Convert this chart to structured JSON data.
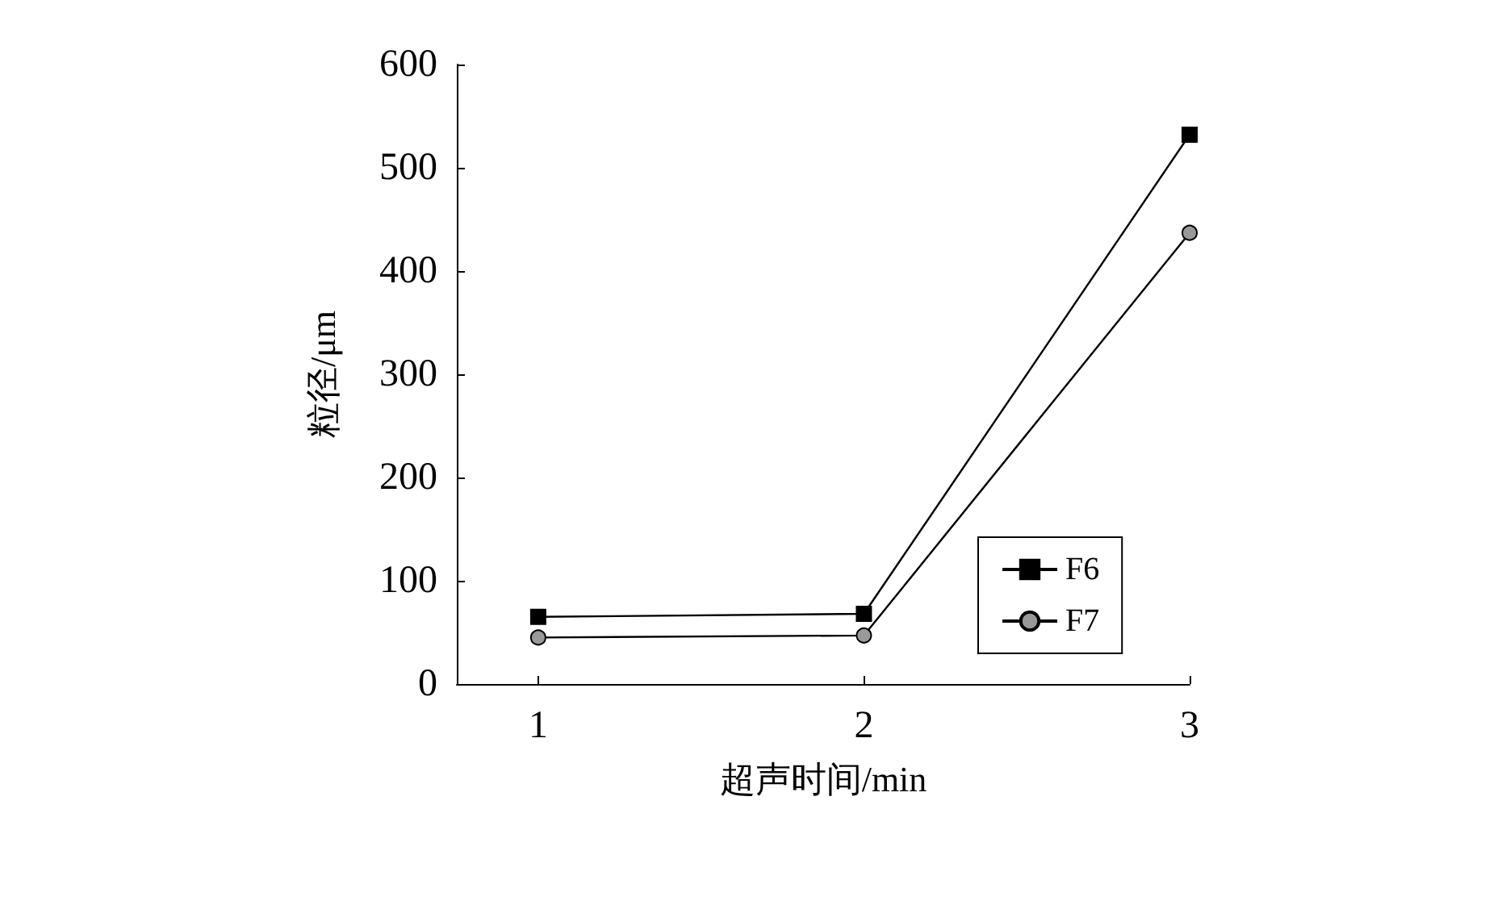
{
  "chart_data": {
    "type": "line",
    "xlabel": "超声时间/min",
    "ylabel": "粒径/μm",
    "x": [
      1,
      2,
      3
    ],
    "series": [
      {
        "name": "F6",
        "color": "#000000",
        "marker": "square",
        "values": [
          65,
          68,
          532
        ]
      },
      {
        "name": "F7",
        "color": "#999999",
        "marker": "circle",
        "values": [
          45,
          47,
          437
        ]
      }
    ],
    "xlim": [
      0.75,
      3
    ],
    "xticks": [
      1,
      2,
      3
    ],
    "ylim": [
      0,
      600
    ],
    "yticks": [
      0,
      100,
      200,
      300,
      400,
      500,
      600
    ],
    "grid": false,
    "legend": "right",
    "line_style": "solid"
  }
}
